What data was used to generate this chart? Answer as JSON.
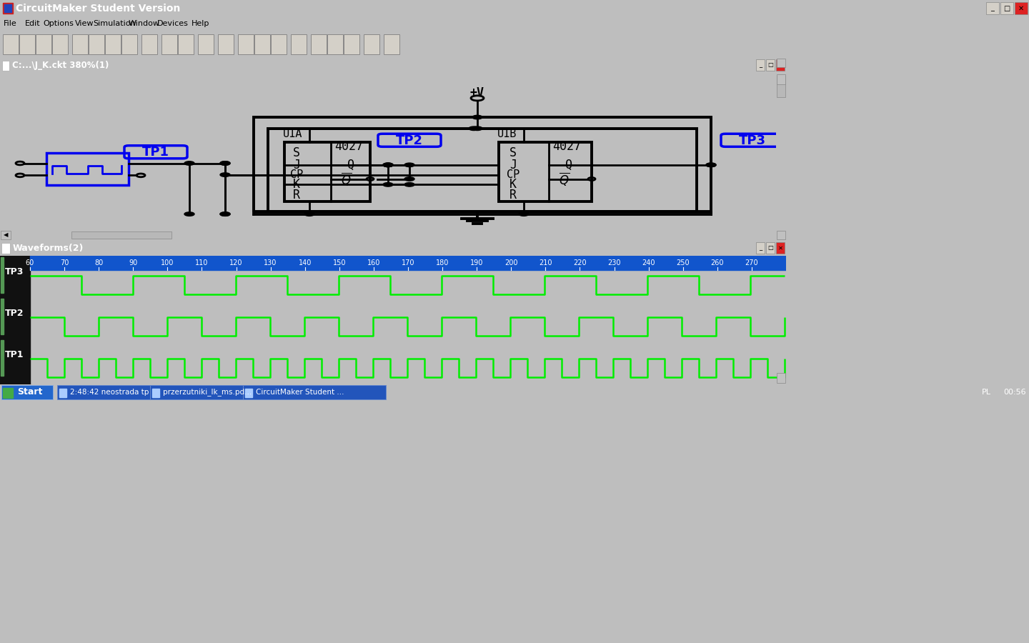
{
  "title_bar": "CircuitMaker Student Version",
  "title_bar_color": "#1155CC",
  "menu_items": [
    "File",
    "Edit",
    "Options",
    "View",
    "Simulation",
    "Window",
    "Devices",
    "Help"
  ],
  "window_title": "C:...\\J_K.ckt 380%(1)",
  "window_bg": "#FFFFFF",
  "outer_bg": "#BEBEBE",
  "scroll_bg": "#C8C8C8",
  "waveform_title": "Waveforms(2)",
  "waveform_bg": "#000000",
  "waveform_ruler_bg": "#1155CC",
  "waveform_panel_bg": "#000000",
  "waveform_labels": [
    "TP3",
    "TP2",
    "TP1"
  ],
  "waveform_color": "#00EE00",
  "taskbar_color": "#1155CC",
  "taskbar_start_color": "#3377DD",
  "vcc_label": "+V",
  "u1a_label": "U1A",
  "u1b_label": "U1B",
  "chip_label": "4027",
  "tp1_label": "TP1",
  "tp2_label": "TP2",
  "tp3_label": "TP3",
  "blue_color": "#0000EE",
  "black_color": "#000000",
  "lw": 2.0,
  "tlw": 2.8,
  "dot_r": 7
}
